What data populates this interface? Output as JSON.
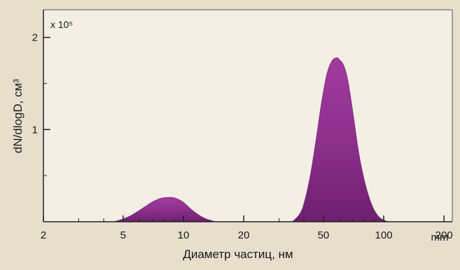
{
  "chart_data": {
    "type": "area",
    "xlabel": "Диаметр частиц, нм",
    "ylabel": "dN/dlogD, см³",
    "y_multiplier": "x 10⁵",
    "x_scale": "log",
    "xlim": [
      2,
      220
    ],
    "ylim": [
      0,
      2.3
    ],
    "x_ticks": [
      2,
      5,
      10,
      20,
      50,
      100,
      200
    ],
    "x_tick_labels": [
      "2",
      "5",
      "10",
      "20",
      "50",
      "100",
      "200"
    ],
    "x_unit_label": "mm",
    "y_ticks": [
      1,
      2
    ],
    "y_tick_labels": [
      "1",
      "2"
    ],
    "grid": false,
    "fill_color": "#8a2f8a",
    "series": [
      {
        "x": [
          4.5,
          5,
          5.5,
          6,
          6.5,
          7,
          7.5,
          8,
          8.5,
          9,
          9.5,
          10,
          10.5,
          11,
          12,
          13,
          14.5
        ],
        "y": [
          0.0,
          0.03,
          0.07,
          0.12,
          0.17,
          0.215,
          0.245,
          0.26,
          0.265,
          0.26,
          0.24,
          0.21,
          0.17,
          0.13,
          0.07,
          0.03,
          0.0
        ]
      },
      {
        "x": [
          35,
          38,
          40,
          43,
          46,
          49,
          52,
          55,
          58,
          60,
          63,
          66,
          70,
          75,
          80,
          85,
          90,
          96,
          105
        ],
        "y": [
          0.0,
          0.08,
          0.2,
          0.5,
          0.9,
          1.3,
          1.6,
          1.74,
          1.78,
          1.76,
          1.7,
          1.55,
          1.2,
          0.75,
          0.45,
          0.25,
          0.12,
          0.04,
          0.0
        ]
      }
    ]
  }
}
